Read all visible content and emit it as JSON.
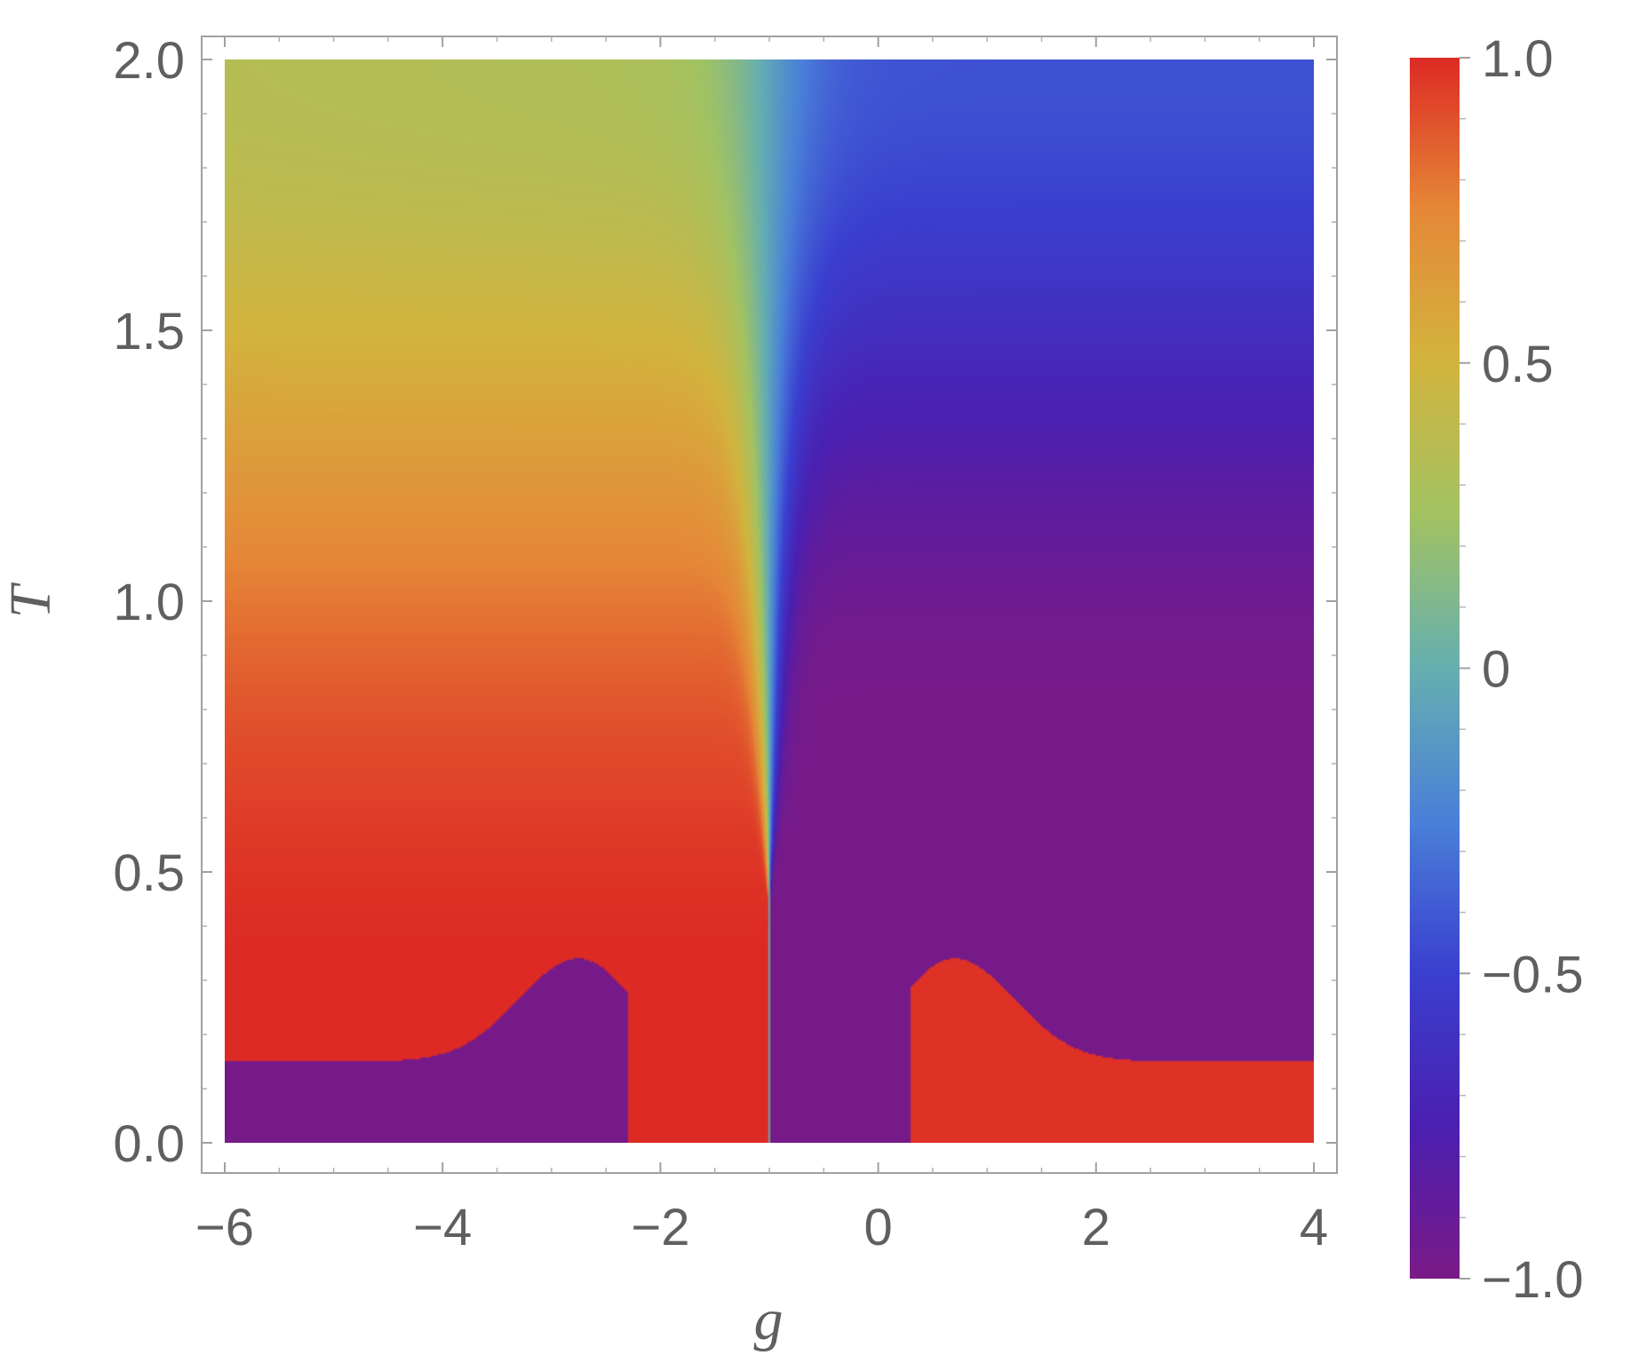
{
  "chart_data": {
    "type": "heatmap",
    "title": "",
    "xlabel": "g",
    "ylabel": "T",
    "xlim": [
      -6,
      4
    ],
    "ylim": [
      0,
      2
    ],
    "x_ticks": [
      -6,
      -4,
      -2,
      0,
      2,
      4
    ],
    "x_tick_labels": [
      "−6",
      "−4",
      "−2",
      "0",
      "2",
      "4"
    ],
    "y_ticks": [
      0,
      0.5,
      1,
      1.5,
      2
    ],
    "y_tick_labels": [
      "0.0",
      "0.5",
      "1.0",
      "1.5",
      "2.0"
    ],
    "colorbar": {
      "range": [
        -1,
        1
      ],
      "ticks": [
        -1,
        -0.5,
        0,
        0.5,
        1
      ],
      "tick_labels": [
        "−1.0",
        "−0.5",
        "0",
        "0.5",
        "1.0"
      ],
      "colors": [
        "#7a1a87",
        "#4b1fb0",
        "#3a3fd0",
        "#4a80d8",
        "#65afb0",
        "#a2c262",
        "#d2b43e",
        "#e58837",
        "#dd2a24"
      ]
    },
    "features": {
      "boundary_g": -1,
      "fan_apex_T": 0.45,
      "low_T_plateau": 0.15,
      "left_dome": {
        "g_peak": -2.75,
        "T_peak": 0.34,
        "g_right": -2.3
      },
      "right_dome": {
        "g_peak": 0.7,
        "T_peak": 0.34,
        "g_left": 0.3
      }
    }
  }
}
